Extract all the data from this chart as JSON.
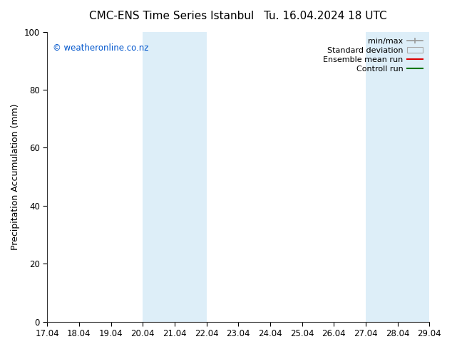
{
  "title_left": "CMC-ENS Time Series Istanbul",
  "title_right": "Tu. 16.04.2024 18 UTC",
  "ylabel": "Precipitation Accumulation (mm)",
  "watermark": "© weatheronline.co.nz",
  "watermark_color": "#0055cc",
  "ylim": [
    0,
    100
  ],
  "yticks": [
    0,
    20,
    40,
    60,
    80,
    100
  ],
  "xtick_labels": [
    "17.04",
    "18.04",
    "19.04",
    "20.04",
    "21.04",
    "22.04",
    "23.04",
    "24.04",
    "25.04",
    "26.04",
    "27.04",
    "28.04",
    "29.04"
  ],
  "xtick_positions": [
    0,
    1,
    2,
    3,
    4,
    5,
    6,
    7,
    8,
    9,
    10,
    11,
    12
  ],
  "shaded_regions": [
    {
      "x_start": 3,
      "x_end": 5,
      "color": "#ddeef8"
    },
    {
      "x_start": 10,
      "x_end": 12,
      "color": "#ddeef8"
    }
  ],
  "legend_entries": [
    {
      "label": "min/max",
      "type": "hline",
      "color": "#999999",
      "linewidth": 1.2
    },
    {
      "label": "Standard deviation",
      "type": "fill",
      "facecolor": "#ddeef8",
      "edgecolor": "#aaaaaa"
    },
    {
      "label": "Ensemble mean run",
      "type": "line",
      "color": "#dd0000",
      "linewidth": 1.5
    },
    {
      "label": "Controll run",
      "type": "line",
      "color": "#007700",
      "linewidth": 1.5
    }
  ],
  "background_color": "#ffffff",
  "plot_bg_color": "#ffffff",
  "border_color": "#333333",
  "title_fontsize": 11,
  "label_fontsize": 9,
  "tick_fontsize": 8.5,
  "legend_fontsize": 8
}
